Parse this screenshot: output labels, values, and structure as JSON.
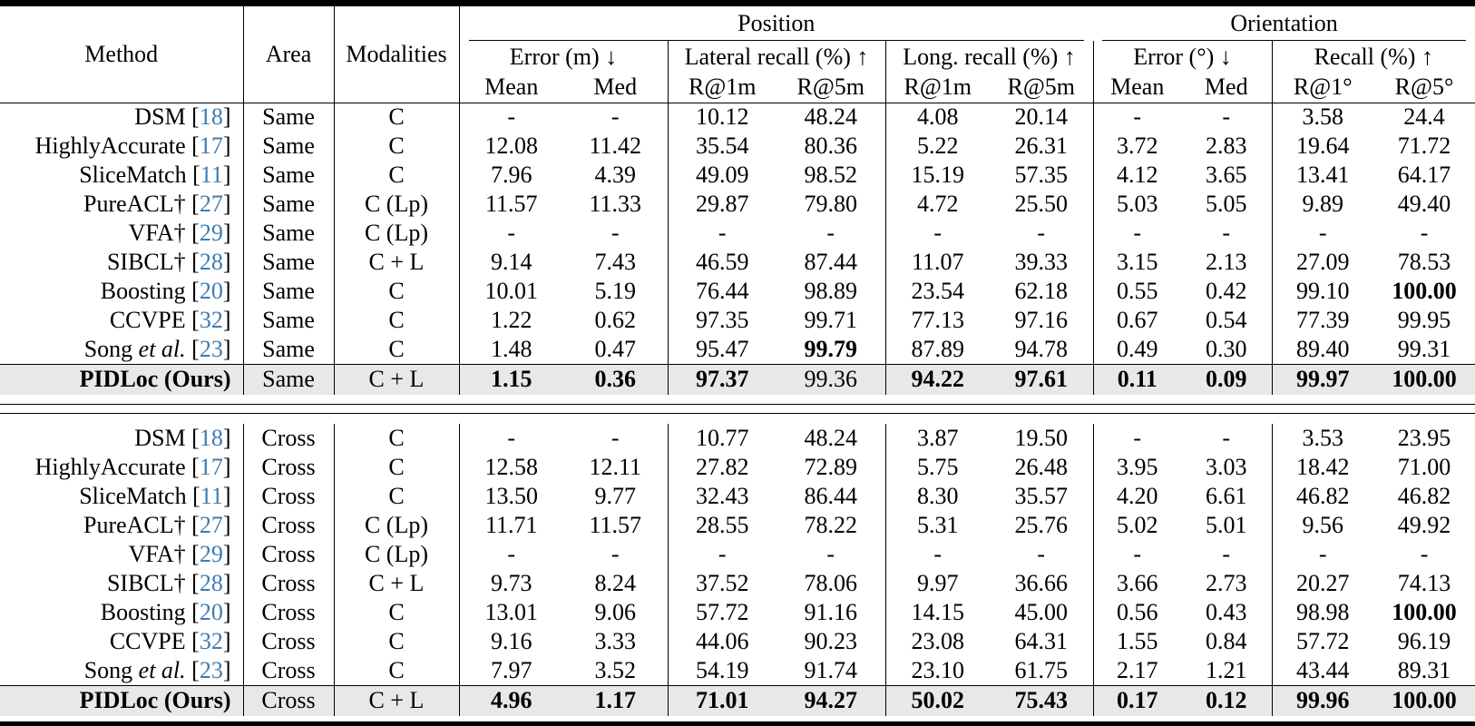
{
  "colors": {
    "citation_blue": "#3c7cb4",
    "highlight_row": "#e8e8e8"
  },
  "table": {
    "header": {
      "method": "Method",
      "area": "Area",
      "modalities": "Modalities",
      "groups": [
        {
          "label": "Position",
          "subgroups": [
            {
              "label": "Error (m) ↓",
              "cols": [
                "Mean",
                "Med"
              ]
            },
            {
              "label": "Lateral recall (%) ↑",
              "cols": [
                "R@1m",
                "R@5m"
              ]
            },
            {
              "label": "Long. recall (%) ↑",
              "cols": [
                "R@1m",
                "R@5m"
              ]
            }
          ]
        },
        {
          "label": "Orientation",
          "subgroups": [
            {
              "label": "Error (°) ↓",
              "cols": [
                "Mean",
                "Med"
              ]
            },
            {
              "label": "Recall (%) ↑",
              "cols": [
                "R@1°",
                "R@5°"
              ]
            }
          ]
        }
      ]
    },
    "sections": [
      {
        "area": "Same",
        "rows": [
          {
            "method": {
              "name": "DSM",
              "italic": "",
              "cite": "18",
              "bold": false
            },
            "area": "Same",
            "modalities": "C",
            "values": [
              "-",
              "-",
              "10.12",
              "48.24",
              "4.08",
              "20.14",
              "-",
              "-",
              "3.58",
              "24.4"
            ],
            "bold": [],
            "highlight": false
          },
          {
            "method": {
              "name": "HighlyAccurate",
              "italic": "",
              "cite": "17",
              "bold": false
            },
            "area": "Same",
            "modalities": "C",
            "values": [
              "12.08",
              "11.42",
              "35.54",
              "80.36",
              "5.22",
              "26.31",
              "3.72",
              "2.83",
              "19.64",
              "71.72"
            ],
            "bold": [],
            "highlight": false
          },
          {
            "method": {
              "name": "SliceMatch",
              "italic": "",
              "cite": "11",
              "bold": false
            },
            "area": "Same",
            "modalities": "C",
            "values": [
              "7.96",
              "4.39",
              "49.09",
              "98.52",
              "15.19",
              "57.35",
              "4.12",
              "3.65",
              "13.41",
              "64.17"
            ],
            "bold": [],
            "highlight": false
          },
          {
            "method": {
              "name": "PureACL†",
              "italic": "",
              "cite": "27",
              "bold": false
            },
            "area": "Same",
            "modalities": "C (Lp)",
            "values": [
              "11.57",
              "11.33",
              "29.87",
              "79.80",
              "4.72",
              "25.50",
              "5.03",
              "5.05",
              "9.89",
              "49.40"
            ],
            "bold": [],
            "highlight": false
          },
          {
            "method": {
              "name": "VFA†",
              "italic": "",
              "cite": "29",
              "bold": false
            },
            "area": "Same",
            "modalities": "C (Lp)",
            "values": [
              "-",
              "-",
              "-",
              "-",
              "-",
              "-",
              "-",
              "-",
              "-",
              "-"
            ],
            "bold": [],
            "highlight": false
          },
          {
            "method": {
              "name": "SIBCL†",
              "italic": "",
              "cite": "28",
              "bold": false
            },
            "area": "Same",
            "modalities": "C + L",
            "values": [
              "9.14",
              "7.43",
              "46.59",
              "87.44",
              "11.07",
              "39.33",
              "3.15",
              "2.13",
              "27.09",
              "78.53"
            ],
            "bold": [],
            "highlight": false
          },
          {
            "method": {
              "name": "Boosting",
              "italic": "",
              "cite": "20",
              "bold": false
            },
            "area": "Same",
            "modalities": "C",
            "values": [
              "10.01",
              "5.19",
              "76.44",
              "98.89",
              "23.54",
              "62.18",
              "0.55",
              "0.42",
              "99.10",
              "100.00"
            ],
            "bold": [
              9
            ],
            "highlight": false
          },
          {
            "method": {
              "name": "CCVPE",
              "italic": "",
              "cite": "32",
              "bold": false
            },
            "area": "Same",
            "modalities": "C",
            "values": [
              "1.22",
              "0.62",
              "97.35",
              "99.71",
              "77.13",
              "97.16",
              "0.67",
              "0.54",
              "77.39",
              "99.95"
            ],
            "bold": [],
            "highlight": false
          },
          {
            "method": {
              "name": "Song ",
              "italic": "et al.",
              "cite": "23",
              "bold": false
            },
            "area": "Same",
            "modalities": "C",
            "values": [
              "1.48",
              "0.47",
              "95.47",
              "99.79",
              "87.89",
              "94.78",
              "0.49",
              "0.30",
              "89.40",
              "99.31"
            ],
            "bold": [
              3
            ],
            "highlight": false
          },
          {
            "method": {
              "name": "PIDLoc (Ours)",
              "italic": "",
              "cite": null,
              "bold": true
            },
            "area": "Same",
            "modalities": "C + L",
            "values": [
              "1.15",
              "0.36",
              "97.37",
              "99.36",
              "94.22",
              "97.61",
              "0.11",
              "0.09",
              "99.97",
              "100.00"
            ],
            "bold": [
              0,
              1,
              2,
              4,
              5,
              6,
              7,
              8,
              9
            ],
            "highlight": true
          }
        ]
      },
      {
        "area": "Cross",
        "rows": [
          {
            "method": {
              "name": "DSM",
              "italic": "",
              "cite": "18",
              "bold": false
            },
            "area": "Cross",
            "modalities": "C",
            "values": [
              "-",
              "-",
              "10.77",
              "48.24",
              "3.87",
              "19.50",
              "-",
              "-",
              "3.53",
              "23.95"
            ],
            "bold": [],
            "highlight": false
          },
          {
            "method": {
              "name": "HighlyAccurate",
              "italic": "",
              "cite": "17",
              "bold": false
            },
            "area": "Cross",
            "modalities": "C",
            "values": [
              "12.58",
              "12.11",
              "27.82",
              "72.89",
              "5.75",
              "26.48",
              "3.95",
              "3.03",
              "18.42",
              "71.00"
            ],
            "bold": [],
            "highlight": false
          },
          {
            "method": {
              "name": "SliceMatch",
              "italic": "",
              "cite": "11",
              "bold": false
            },
            "area": "Cross",
            "modalities": "C",
            "values": [
              "13.50",
              "9.77",
              "32.43",
              "86.44",
              "8.30",
              "35.57",
              "4.20",
              "6.61",
              "46.82",
              "46.82"
            ],
            "bold": [],
            "highlight": false
          },
          {
            "method": {
              "name": "PureACL†",
              "italic": "",
              "cite": "27",
              "bold": false
            },
            "area": "Cross",
            "modalities": "C (Lp)",
            "values": [
              "11.71",
              "11.57",
              "28.55",
              "78.22",
              "5.31",
              "25.76",
              "5.02",
              "5.01",
              "9.56",
              "49.92"
            ],
            "bold": [],
            "highlight": false
          },
          {
            "method": {
              "name": "VFA†",
              "italic": "",
              "cite": "29",
              "bold": false
            },
            "area": "Cross",
            "modalities": "C (Lp)",
            "values": [
              "-",
              "-",
              "-",
              "-",
              "-",
              "-",
              "-",
              "-",
              "-",
              "-"
            ],
            "bold": [],
            "highlight": false
          },
          {
            "method": {
              "name": "SIBCL†",
              "italic": "",
              "cite": "28",
              "bold": false
            },
            "area": "Cross",
            "modalities": "C + L",
            "values": [
              "9.73",
              "8.24",
              "37.52",
              "78.06",
              "9.97",
              "36.66",
              "3.66",
              "2.73",
              "20.27",
              "74.13"
            ],
            "bold": [],
            "highlight": false
          },
          {
            "method": {
              "name": "Boosting",
              "italic": "",
              "cite": "20",
              "bold": false
            },
            "area": "Cross",
            "modalities": "C",
            "values": [
              "13.01",
              "9.06",
              "57.72",
              "91.16",
              "14.15",
              "45.00",
              "0.56",
              "0.43",
              "98.98",
              "100.00"
            ],
            "bold": [
              9
            ],
            "highlight": false
          },
          {
            "method": {
              "name": "CCVPE",
              "italic": "",
              "cite": "32",
              "bold": false
            },
            "area": "Cross",
            "modalities": "C",
            "values": [
              "9.16",
              "3.33",
              "44.06",
              "90.23",
              "23.08",
              "64.31",
              "1.55",
              "0.84",
              "57.72",
              "96.19"
            ],
            "bold": [],
            "highlight": false
          },
          {
            "method": {
              "name": "Song ",
              "italic": "et al.",
              "cite": "23",
              "bold": false
            },
            "area": "Cross",
            "modalities": "C",
            "values": [
              "7.97",
              "3.52",
              "54.19",
              "91.74",
              "23.10",
              "61.75",
              "2.17",
              "1.21",
              "43.44",
              "89.31"
            ],
            "bold": [],
            "highlight": false
          },
          {
            "method": {
              "name": "PIDLoc (Ours)",
              "italic": "",
              "cite": null,
              "bold": true
            },
            "area": "Cross",
            "modalities": "C + L",
            "values": [
              "4.96",
              "1.17",
              "71.01",
              "94.27",
              "50.02",
              "75.43",
              "0.17",
              "0.12",
              "99.96",
              "100.00"
            ],
            "bold": [
              0,
              1,
              2,
              3,
              4,
              5,
              6,
              7,
              8,
              9
            ],
            "highlight": true
          }
        ]
      }
    ]
  }
}
